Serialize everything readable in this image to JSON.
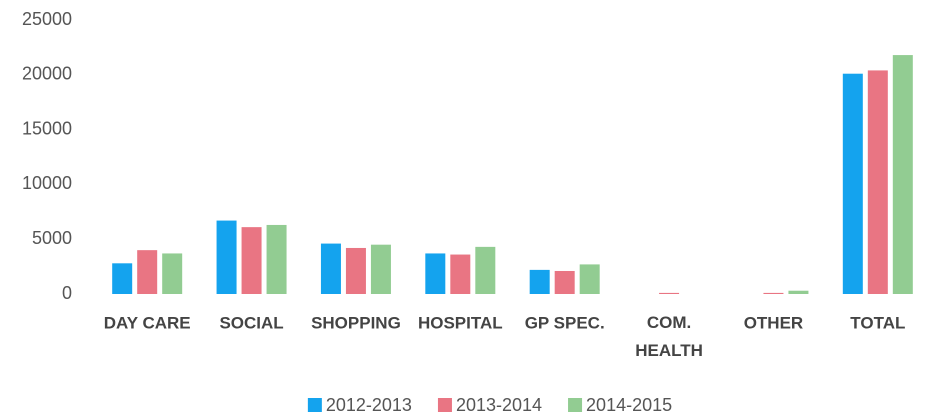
{
  "chart_data": {
    "type": "bar",
    "categories": [
      "DAY CARE",
      "SOCIAL",
      "SHOPPING",
      "HOSPITAL",
      "GP SPEC.",
      "COM. HEALTH",
      "OTHER",
      "TOTAL"
    ],
    "series": [
      {
        "name": "2012-2013",
        "color": "#14a3ee",
        "values": [
          2800,
          6700,
          4600,
          3700,
          2200,
          0,
          0,
          20100
        ]
      },
      {
        "name": "2013-2014",
        "color": "#e97583",
        "values": [
          4000,
          6100,
          4200,
          3600,
          2100,
          100,
          100,
          20400
        ]
      },
      {
        "name": "2014-2015",
        "color": "#92cc92",
        "values": [
          3700,
          6300,
          4500,
          4300,
          2700,
          0,
          300,
          21800
        ]
      }
    ],
    "ylim": [
      0,
      25000
    ],
    "yticks": [
      0,
      5000,
      10000,
      15000,
      20000,
      25000
    ],
    "grid": false,
    "legend": "bottom"
  }
}
